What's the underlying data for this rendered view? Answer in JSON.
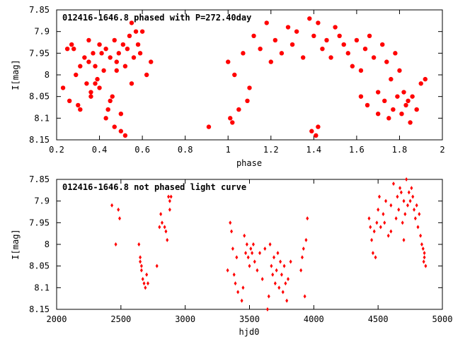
{
  "chart_data": [
    {
      "type": "scatter",
      "title": "012416-1646.8 phased with P=272.40day",
      "xlabel": "phase",
      "ylabel": "I[mag]",
      "xlim": [
        0.2,
        2.0
      ],
      "ylim": [
        7.85,
        8.15
      ],
      "y_inverted": true,
      "xticks": [
        "0.2",
        "0.4",
        "0.6",
        "0.8",
        "1",
        "1.2",
        "1.4",
        "1.6",
        "1.8",
        "2"
      ],
      "yticks": [
        "7.85",
        "7.9",
        "7.95",
        "8",
        "8.05",
        "8.1",
        "8.15"
      ],
      "grid": false,
      "marker_color": "#ff0000",
      "series": [
        {
          "x": [
            0.23,
            0.25,
            0.26,
            0.27,
            0.28,
            0.29,
            0.3,
            0.31,
            0.33,
            0.34,
            0.35,
            0.36,
            0.37,
            0.38,
            0.39,
            0.4,
            0.41,
            0.42,
            0.43,
            0.44,
            0.45,
            0.46,
            0.47,
            0.48,
            0.49,
            0.5,
            0.51,
            0.52,
            0.53,
            0.54,
            0.55,
            0.56,
            0.57,
            0.58,
            0.59,
            0.6,
            0.62,
            0.64,
            0.45,
            0.47,
            0.5,
            0.52,
            0.36,
            0.4,
            0.35,
            0.31,
            0.38,
            0.43,
            0.48,
            0.55,
            0.91,
            1.0,
            1.03,
            1.07,
            1.09,
            1.12,
            1.15,
            1.18,
            1.2,
            1.22,
            1.25,
            1.28,
            1.3,
            1.32,
            1.35,
            1.38,
            1.4,
            1.42,
            1.44,
            1.46,
            1.48,
            1.5,
            1.52,
            1.54,
            1.56,
            1.58,
            1.6,
            1.62,
            1.64,
            1.66,
            1.68,
            1.7,
            1.72,
            1.74,
            1.76,
            1.78,
            1.8,
            1.82,
            1.84,
            1.86,
            1.88,
            1.9,
            1.92,
            1.01,
            1.02,
            1.05,
            1.1,
            1.41,
            1.42,
            1.39,
            1.62,
            1.65,
            1.7,
            1.73,
            1.75,
            1.77,
            1.79,
            1.81,
            1.83,
            1.85
          ],
          "y": [
            8.03,
            7.94,
            8.06,
            7.93,
            7.94,
            8.0,
            8.07,
            7.98,
            7.96,
            8.02,
            7.92,
            8.04,
            7.95,
            7.98,
            8.01,
            7.93,
            7.95,
            7.99,
            7.94,
            8.08,
            7.96,
            8.05,
            7.92,
            7.97,
            7.95,
            8.09,
            7.93,
            7.98,
            7.94,
            7.91,
            8.02,
            7.96,
            7.9,
            7.93,
            7.95,
            7.9,
            8.0,
            7.97,
            8.06,
            8.12,
            8.13,
            8.14,
            8.05,
            8.03,
            7.97,
            8.08,
            8.02,
            8.1,
            7.99,
            7.88,
            8.12,
            7.97,
            8.0,
            7.95,
            8.06,
            7.91,
            7.94,
            7.88,
            7.97,
            7.92,
            7.95,
            7.89,
            7.93,
            7.9,
            7.96,
            7.87,
            7.91,
            7.88,
            7.94,
            7.92,
            7.96,
            7.89,
            7.91,
            7.93,
            7.95,
            7.98,
            7.92,
            7.99,
            7.94,
            7.91,
            7.96,
            8.04,
            7.93,
            7.97,
            8.01,
            7.95,
            7.99,
            8.04,
            8.06,
            8.05,
            8.08,
            8.02,
            8.01,
            8.1,
            8.11,
            8.08,
            8.03,
            8.14,
            8.12,
            8.13,
            8.05,
            8.07,
            8.09,
            8.06,
            8.1,
            8.08,
            8.05,
            8.09,
            8.07,
            8.11
          ]
        }
      ]
    },
    {
      "type": "scatter",
      "title": "012416-1646.8 not phased light curve",
      "xlabel": "hjd0",
      "ylabel": "I[mag]",
      "xlim": [
        2000,
        5000
      ],
      "ylim": [
        7.85,
        8.15
      ],
      "y_inverted": true,
      "xticks": [
        "2000",
        "2500",
        "3000",
        "3500",
        "4000",
        "4500",
        "5000"
      ],
      "yticks": [
        "7.85",
        "7.9",
        "7.95",
        "8",
        "8.05",
        "8.1",
        "8.15"
      ],
      "grid": false,
      "marker_color": "#ff0000",
      "series": [
        {
          "x": [
            2430,
            2460,
            2480,
            2490,
            2640,
            2650,
            2660,
            2670,
            2680,
            2690,
            2700,
            2710,
            2650,
            2660,
            2780,
            2800,
            2810,
            2820,
            2840,
            2850,
            2860,
            2870,
            2880,
            2880,
            2890,
            3330,
            3350,
            3360,
            3370,
            3380,
            3390,
            3400,
            3410,
            3440,
            3450,
            3460,
            3470,
            3480,
            3490,
            3500,
            3510,
            3520,
            3530,
            3540,
            3560,
            3580,
            3600,
            3620,
            3640,
            3650,
            3660,
            3670,
            3680,
            3690,
            3700,
            3710,
            3720,
            3730,
            3740,
            3750,
            3760,
            3770,
            3780,
            3790,
            3800,
            3820,
            3900,
            3910,
            3920,
            3930,
            3940,
            3950,
            4430,
            4440,
            4450,
            4460,
            4470,
            4480,
            4490,
            4500,
            4510,
            4520,
            4540,
            4560,
            4580,
            4600,
            4620,
            4640,
            4650,
            4660,
            4670,
            4680,
            4690,
            4700,
            4710,
            4720,
            4730,
            4740,
            4750,
            4760,
            4770,
            4780,
            4790,
            4800,
            4810,
            4820,
            4830,
            4840,
            4850,
            4860,
            4870,
            4860,
            4855,
            4700,
            4600,
            4550
          ],
          "y": [
            7.91,
            8.0,
            7.92,
            7.94,
            8.0,
            8.03,
            8.06,
            8.08,
            8.09,
            8.1,
            8.07,
            8.09,
            8.04,
            8.05,
            8.05,
            7.96,
            7.93,
            7.95,
            7.96,
            7.97,
            7.99,
            7.89,
            7.9,
            7.92,
            7.89,
            8.06,
            7.95,
            7.97,
            8.01,
            8.07,
            8.09,
            8.03,
            8.11,
            8.13,
            8.1,
            7.98,
            8.02,
            8.0,
            8.03,
            8.05,
            8.01,
            8.02,
            8.0,
            8.04,
            8.06,
            8.02,
            8.08,
            8.01,
            8.15,
            8.12,
            8.0,
            8.05,
            8.07,
            8.03,
            8.09,
            8.06,
            8.02,
            8.1,
            8.04,
            8.07,
            8.11,
            8.05,
            8.09,
            8.13,
            8.08,
            8.04,
            8.06,
            8.03,
            8.01,
            8.12,
            7.99,
            7.94,
            7.94,
            7.96,
            7.99,
            8.02,
            7.97,
            8.03,
            7.95,
            7.92,
            7.89,
            7.96,
            7.93,
            7.9,
            7.98,
            7.91,
            7.86,
            7.94,
            7.89,
            7.92,
            7.87,
            7.88,
            7.95,
            7.9,
            7.93,
            7.85,
            7.91,
            7.88,
            7.9,
            7.87,
            7.89,
            7.92,
            7.94,
            7.91,
            7.96,
            7.93,
            7.98,
            8.0,
            8.01,
            8.03,
            8.05,
            8.02,
            8.04,
            7.99,
            7.97,
            7.95
          ]
        }
      ]
    }
  ]
}
